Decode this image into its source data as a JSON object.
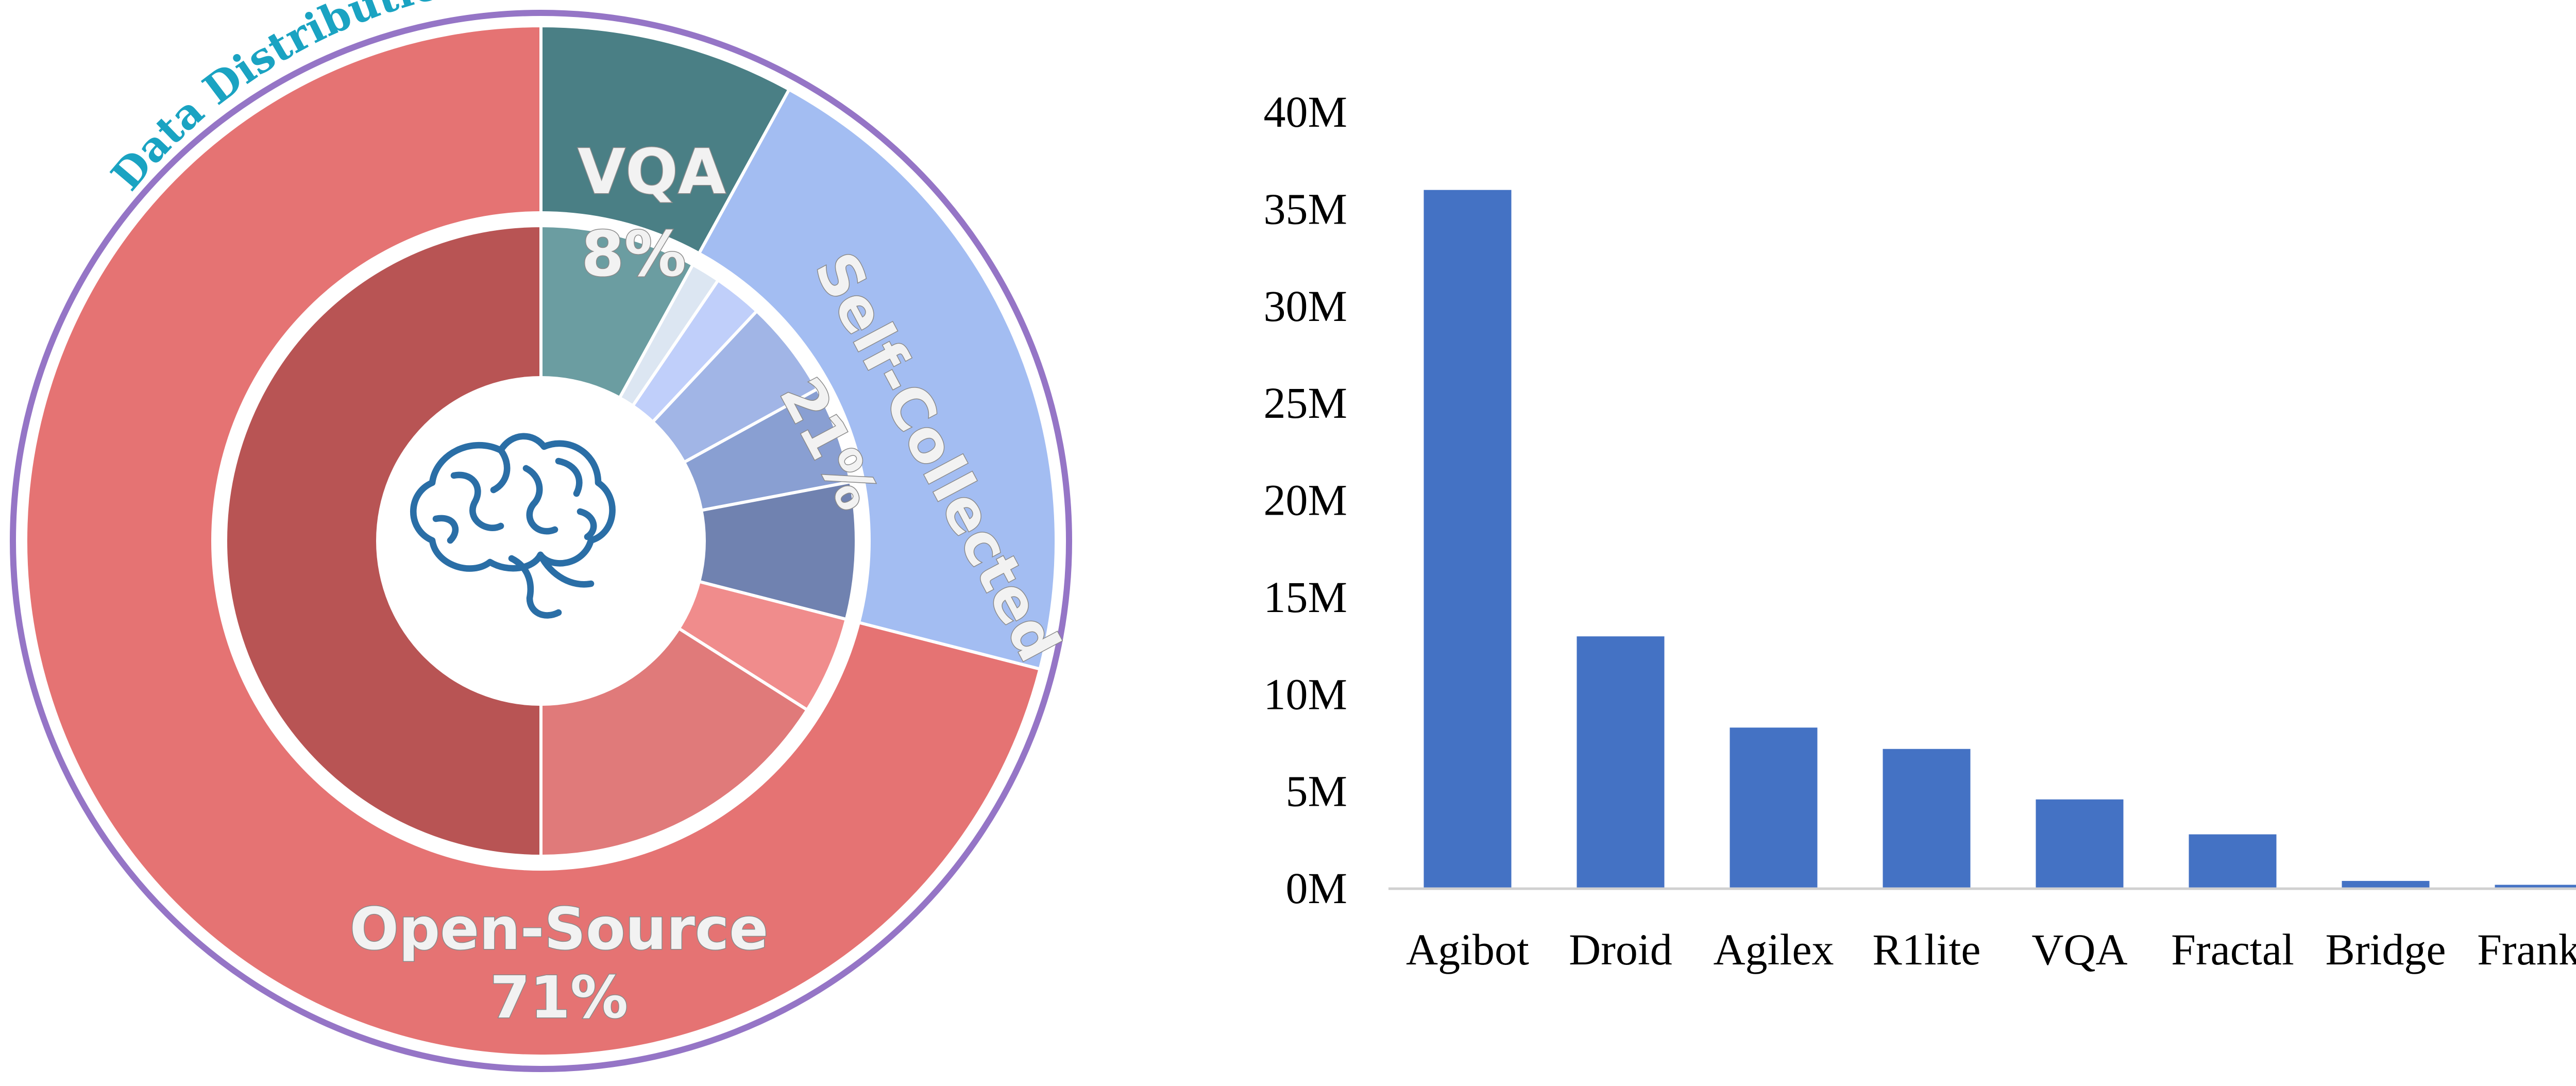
{
  "chart_data": [
    {
      "type": "pie",
      "title": "Data Distribution",
      "center_icon": "brain-icon",
      "outer_ring": [
        {
          "name": "VQA",
          "value": 8,
          "label": "VQA",
          "percent_label": "8%",
          "color": "#4a7f85"
        },
        {
          "name": "Self-Collected",
          "value": 21,
          "label": "Self-Collected",
          "percent_label": "21%",
          "color": "#a3bdf2"
        },
        {
          "name": "Open-Source",
          "value": 71,
          "label": "Open-Source",
          "percent_label": "71%",
          "color": "#e57373"
        }
      ],
      "inner_ring": [
        {
          "value": 8,
          "color": "#6b9da1"
        },
        {
          "value": 1.5,
          "color": "#dce6f2"
        },
        {
          "value": 2.5,
          "color": "#c0cffa"
        },
        {
          "value": 5,
          "color": "#a1b5e6"
        },
        {
          "value": 5,
          "color": "#899fd2"
        },
        {
          "value": 7,
          "color": "#7082b0"
        },
        {
          "value": 5,
          "color": "#f08c8c"
        },
        {
          "value": 16,
          "color": "#e07a7a"
        },
        {
          "value": 50,
          "color": "#b85454"
        }
      ],
      "colors": {
        "ring_border": "#9575c6",
        "title": "#1aa3c2",
        "icon": "#2a6ea6"
      }
    },
    {
      "type": "bar",
      "categories": [
        "Agibot",
        "Droid",
        "Agilex",
        "R1lite",
        "VQA",
        "Fractal",
        "Bridge",
        "Franka"
      ],
      "values": [
        36,
        13,
        8.3,
        7.2,
        4.6,
        2.8,
        0.4,
        0.2
      ],
      "ylim": [
        0,
        40
      ],
      "yticks": [
        "0M",
        "5M",
        "10M",
        "15M",
        "20M",
        "25M",
        "30M",
        "35M",
        "40M"
      ],
      "xlabel": "",
      "ylabel": "",
      "grid": false,
      "color": "#4472c4"
    }
  ]
}
